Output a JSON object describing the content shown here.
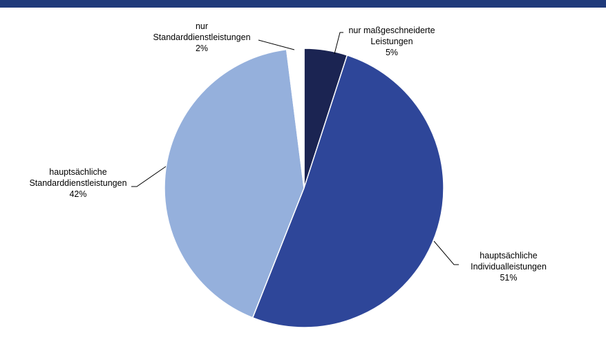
{
  "theme": {
    "top_bar_color": "#1f3a7a"
  },
  "chart_data": {
    "type": "pie",
    "title": "",
    "start_angle_deg": 0,
    "direction": "clockwise",
    "slices": [
      {
        "label_lines": [
          "nur maßgeschneiderte",
          "Leistungen"
        ],
        "value": 5,
        "value_label": "5%",
        "color": "#1b2452"
      },
      {
        "label_lines": [
          "hauptsächliche",
          "Individualleistungen"
        ],
        "value": 51,
        "value_label": "51%",
        "color": "#2e4699"
      },
      {
        "label_lines": [
          "hauptsächliche",
          "Standarddienstleistungen"
        ],
        "value": 42,
        "value_label": "42%",
        "color": "#95b0dc"
      },
      {
        "label_lines": [
          "nur",
          "Standarddienstleistungen"
        ],
        "value": 2,
        "value_label": "2%",
        "color": "#ffffff"
      }
    ]
  }
}
